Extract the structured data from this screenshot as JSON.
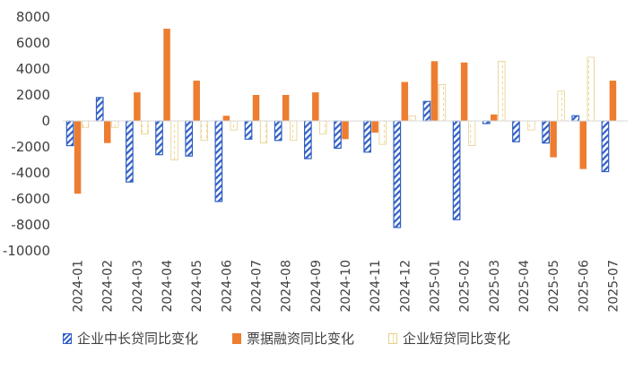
{
  "chart_data": {
    "type": "bar",
    "categories": [
      "2024-01",
      "2024-02",
      "2024-03",
      "2024-04",
      "2024-05",
      "2024-06",
      "2024-07",
      "2024-08",
      "2024-09",
      "2024-10",
      "2024-11",
      "2024-12",
      "2025-01",
      "2025-02",
      "2025-03",
      "2025-04",
      "2025-05",
      "2025-06",
      "2025-07"
    ],
    "series": [
      {
        "name": "企业中长贷同比变化",
        "color": "#2f5fc4",
        "values": [
          -1900,
          1800,
          -4700,
          -2600,
          -2700,
          -6200,
          -1400,
          -1500,
          -2900,
          -2100,
          -2400,
          -8200,
          1500,
          -7600,
          -200,
          -1600,
          -1700,
          400,
          -3900
        ]
      },
      {
        "name": "票据融资同比变化",
        "color": "#ed7d31",
        "values": [
          -5600,
          -1700,
          2200,
          7100,
          3100,
          400,
          2000,
          2000,
          2200,
          -1400,
          -900,
          3000,
          4600,
          4500,
          500,
          0,
          -2800,
          -3700,
          3100
        ]
      },
      {
        "name": "企业短贷同比变化",
        "color": "#e6cf8a",
        "values": [
          -500,
          -500,
          -1000,
          -3000,
          -1500,
          -700,
          -1700,
          -1500,
          -1000,
          0,
          -1800,
          400,
          2800,
          -1900,
          4600,
          -700,
          2300,
          4900,
          0
        ]
      }
    ],
    "ylim": [
      -10000,
      8000
    ],
    "yticks": [
      8000,
      6000,
      4000,
      2000,
      0,
      -2000,
      -4000,
      -6000,
      -8000,
      -10000
    ],
    "title": "",
    "xlabel": "",
    "ylabel": "",
    "grid": false,
    "legend_position": "bottom"
  }
}
